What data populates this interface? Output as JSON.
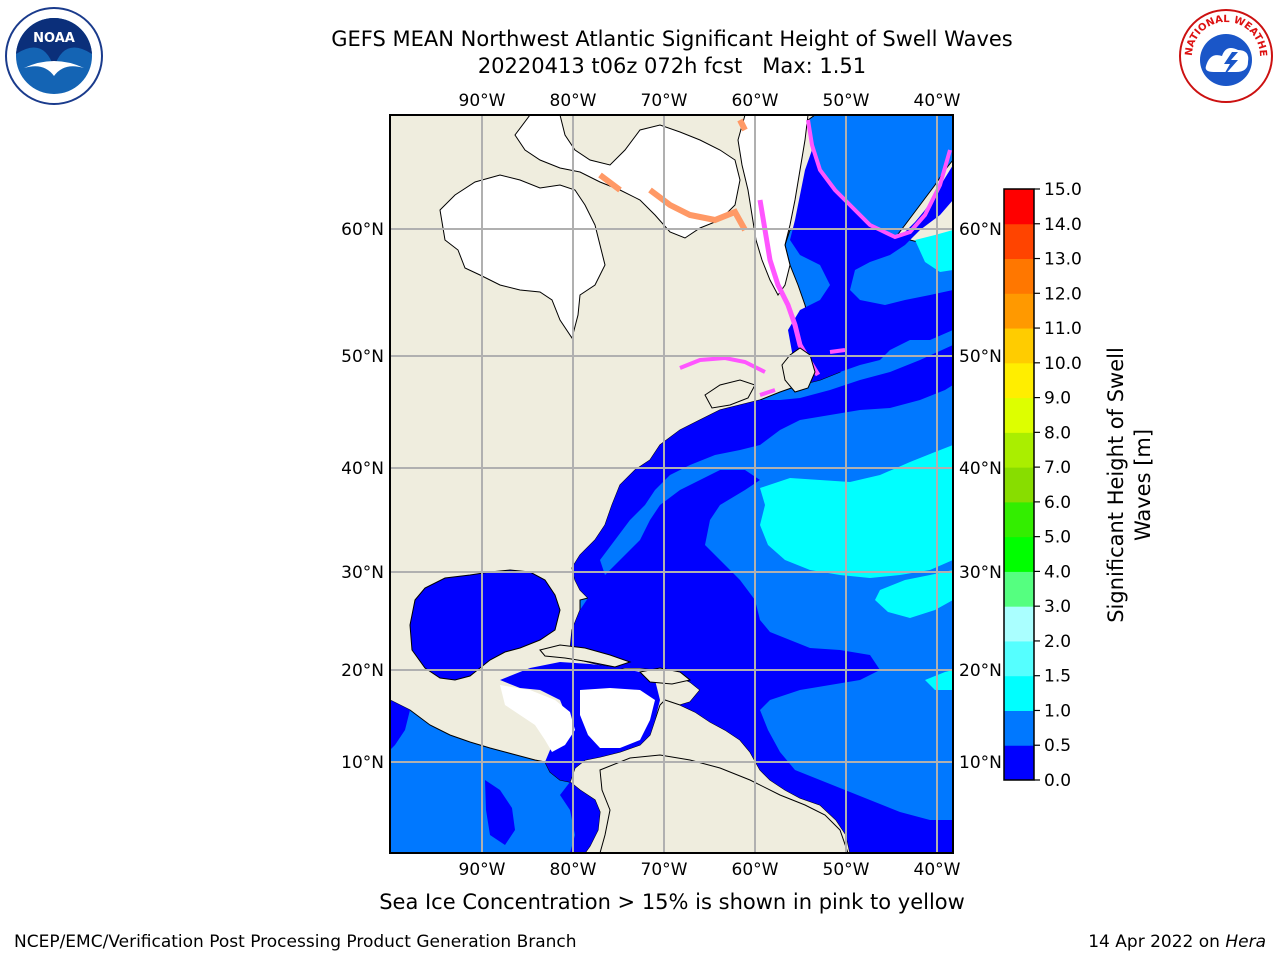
{
  "title": {
    "line1": "GEFS MEAN Northwest Atlantic Significant Height of Swell Waves",
    "line2": "20220413 t06z 072h fcst   Max: 1.51"
  },
  "map": {
    "lon_labels": [
      "90°W",
      "80°W",
      "70°W",
      "60°W",
      "50°W",
      "40°W"
    ],
    "lat_labels": [
      "60°N",
      "50°N",
      "40°N",
      "30°N",
      "20°N",
      "10°N"
    ]
  },
  "colorbar": {
    "label_line1": "Significant Height of Swell",
    "label_line2": "Waves [m]",
    "ticks": [
      "0.0",
      "0.5",
      "1.0",
      "1.5",
      "2.0",
      "3.0",
      "4.0",
      "5.0",
      "6.0",
      "7.0",
      "8.0",
      "9.0",
      "10.0",
      "11.0",
      "12.0",
      "13.0",
      "14.0",
      "15.0"
    ],
    "colors": [
      "#0000ff",
      "#0078ff",
      "#00ffff",
      "#55ffff",
      "#aaffff",
      "#55ff80",
      "#00ff00",
      "#33ee00",
      "#88dd00",
      "#aaee00",
      "#ddff00",
      "#ffee00",
      "#ffcc00",
      "#ff9900",
      "#ff7700",
      "#ff4400",
      "#ff0000"
    ]
  },
  "logos": {
    "noaa_text": "NOAA",
    "nws_text": "NATIONAL WEATHER SERVICE"
  },
  "footer": {
    "note": "Sea Ice Concentration > 15% is shown in pink to yellow",
    "credit": "NCEP/EMC/Verification Post Processing Product Generation Branch",
    "date_prefix": "14 Apr 2022 on ",
    "date_host": "Hera"
  },
  "colors": {
    "land": "#efedde",
    "swell_0_05": "#0000ff",
    "swell_05_10": "#0078ff",
    "swell_10_15": "#00ffff",
    "ice": "#ff55ff",
    "grid": "#b0b0b0"
  }
}
